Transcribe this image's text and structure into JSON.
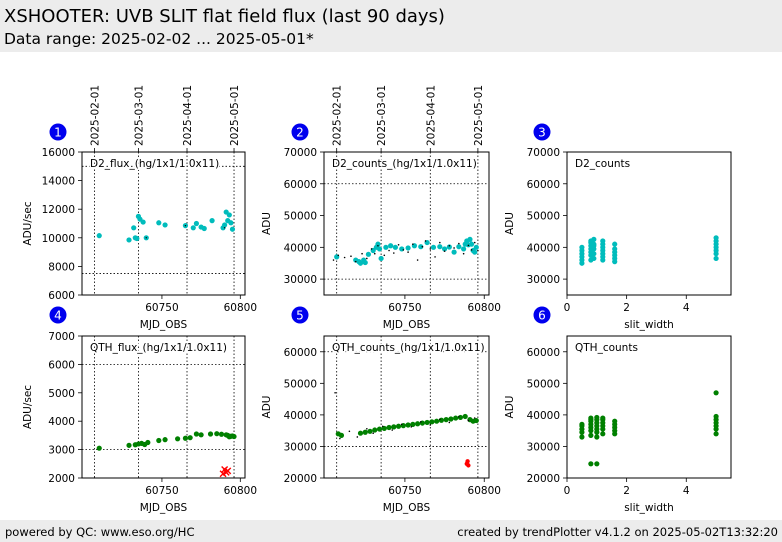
{
  "header": {
    "title": "XSHOOTER: UVB SLIT flat field flux (last 90 days)",
    "subtitle": "Data range: 2025-02-02 ... 2025-05-01*"
  },
  "footer": {
    "left": "powered by QC: www.eso.org/HC",
    "right": "created by trendPlotter v4.1.2 on 2025-05-02T13:32:20"
  },
  "colors": {
    "d2": "#00bcbc",
    "qth": "#008000",
    "outlier": "#ff0000",
    "raw": "#000000",
    "badge": "#0000ee"
  },
  "date_ticks": {
    "labels": [
      "2025-02-01",
      "2025-03-01",
      "2025-04-01",
      "2025-05-01"
    ],
    "mjd": [
      60707,
      60735,
      60766,
      60796
    ]
  },
  "chart_data": [
    {
      "id": 1,
      "badge": "1",
      "type": "scatter",
      "label": "D2_flux_(hg/1x1/1.0x11)",
      "xlabel": "MJD_OBS",
      "ylabel": "ADU/sec",
      "xlim": [
        60699,
        60803
      ],
      "ylim": [
        6000,
        16000
      ],
      "xticks": [
        60750,
        60800
      ],
      "yticks": [
        6000,
        8000,
        10000,
        12000,
        14000,
        16000
      ],
      "hlines": [
        7500,
        15000
      ],
      "series": [
        {
          "color": "d2",
          "size": 2.6,
          "x": [
            60710,
            60729,
            60732,
            60733,
            60734,
            60735,
            60736,
            60738,
            60740,
            60748,
            60752,
            60765,
            60770,
            60772,
            60775,
            60777,
            60782,
            60789,
            60790,
            60791,
            60792,
            60793,
            60794,
            60795
          ],
          "y": [
            10150,
            9850,
            10700,
            10000,
            9950,
            11500,
            11300,
            11100,
            10000,
            11050,
            10900,
            10850,
            10700,
            11000,
            10750,
            10650,
            11200,
            10700,
            10900,
            11800,
            11200,
            11600,
            11050,
            10600
          ]
        },
        {
          "color": "raw",
          "size": 0.7,
          "x": [
            60740,
            60765,
            60790
          ],
          "y": [
            10000,
            10850,
            10700
          ]
        }
      ]
    },
    {
      "id": 2,
      "badge": "2",
      "type": "scatter",
      "label": "D2_counts_(hg/1x1/1.0x11)",
      "xlabel": "MJD_OBS",
      "ylabel": "ADU",
      "xlim": [
        60699,
        60803
      ],
      "ylim": [
        25000,
        70000
      ],
      "xticks": [
        60750,
        60800
      ],
      "yticks": [
        30000,
        40000,
        50000,
        60000,
        70000
      ],
      "hlines": [
        30000,
        60000
      ],
      "series": [
        {
          "color": "d2",
          "size": 2.6,
          "x": [
            60707,
            60719,
            60721,
            60722,
            60724,
            60725,
            60727,
            60730,
            60732,
            60733,
            60734,
            60735,
            60738,
            60741,
            60744,
            60748,
            60752,
            60756,
            60760,
            60764,
            60768,
            60772,
            60775,
            60778,
            60781,
            60784,
            60787,
            60788,
            60789,
            60790,
            60791,
            60792,
            60793,
            60794,
            60795
          ],
          "y": [
            37000,
            36000,
            35500,
            35000,
            36000,
            35200,
            37800,
            39000,
            40000,
            41000,
            39500,
            36500,
            40000,
            40500,
            40000,
            39500,
            39800,
            40500,
            40200,
            41500,
            40000,
            40200,
            39500,
            40100,
            38500,
            40200,
            39500,
            41000,
            42000,
            40800,
            42500,
            41000,
            39000,
            38500,
            40000
          ]
        },
        {
          "color": "raw",
          "size": 0.8,
          "x": [
            60705,
            60708,
            60712,
            60716,
            60719,
            60723,
            60726,
            60729,
            60731,
            60733,
            60737,
            60740,
            60743,
            60746,
            60749,
            60752,
            60755,
            60758,
            60761,
            60763,
            60766,
            60769,
            60772,
            60775,
            60778,
            60781,
            60784,
            60787,
            60790,
            60792,
            60794,
            60796
          ],
          "y": [
            36000,
            37500,
            36800,
            37200,
            35500,
            38000,
            36500,
            39500,
            38000,
            40500,
            37500,
            39000,
            38200,
            40800,
            39200,
            38500,
            41000,
            36000,
            40200,
            42000,
            39500,
            37000,
            41500,
            38800,
            40500,
            39800,
            41200,
            38000,
            40600,
            39200,
            41500,
            39000
          ]
        }
      ]
    },
    {
      "id": 3,
      "badge": "3",
      "type": "scatter",
      "label": "D2_counts",
      "xlabel": "slit_width",
      "ylabel": "ADU",
      "xlim": [
        0,
        5.5
      ],
      "ylim": [
        25000,
        70000
      ],
      "xticks": [
        0,
        2,
        4
      ],
      "yticks": [
        30000,
        40000,
        50000,
        60000,
        70000
      ],
      "hlines": [],
      "series": [
        {
          "color": "d2",
          "size": 2.6,
          "x": [
            0.5,
            0.5,
            0.5,
            0.5,
            0.5,
            0.5,
            0.8,
            0.8,
            0.8,
            0.8,
            0.8,
            0.8,
            0.8,
            0.9,
            0.9,
            0.9,
            0.9,
            0.9,
            0.9,
            1.2,
            1.2,
            1.2,
            1.2,
            1.2,
            1.2,
            1.2,
            1.6,
            1.6,
            1.6,
            1.6,
            1.6,
            1.6,
            5.0,
            5.0,
            5.0,
            5.0,
            5.0,
            5.0,
            5.0
          ],
          "y": [
            35000,
            36000,
            37000,
            38000,
            39000,
            40000,
            36000,
            37500,
            38500,
            39500,
            40500,
            41500,
            42000,
            36500,
            38000,
            39500,
            40500,
            41000,
            42500,
            36000,
            37000,
            38000,
            39000,
            40000,
            41000,
            42000,
            35500,
            36500,
            37500,
            38500,
            39500,
            41000,
            36500,
            38000,
            39000,
            40000,
            41000,
            42000,
            43000
          ]
        }
      ]
    },
    {
      "id": 4,
      "badge": "4",
      "type": "scatter",
      "label": "QTH_flux_(hg/1x1/1.0x11)",
      "xlabel": "MJD_OBS",
      "ylabel": "ADU/sec",
      "xlim": [
        60699,
        60803
      ],
      "ylim": [
        2000,
        7000
      ],
      "xticks": [
        60750,
        60800
      ],
      "yticks": [
        2000,
        3000,
        4000,
        5000,
        6000,
        7000
      ],
      "hlines": [
        3000,
        6000
      ],
      "series": [
        {
          "color": "qth",
          "size": 2.6,
          "x": [
            60710,
            60729,
            60733,
            60735,
            60737,
            60739,
            60741,
            60748,
            60752,
            60760,
            60765,
            60768,
            60772,
            60775,
            60781,
            60785,
            60788,
            60791,
            60792,
            60793,
            60794,
            60795,
            60796
          ],
          "y": [
            3050,
            3150,
            3170,
            3200,
            3220,
            3180,
            3250,
            3320,
            3350,
            3380,
            3400,
            3420,
            3550,
            3520,
            3550,
            3560,
            3540,
            3520,
            3500,
            3450,
            3470,
            3480,
            3460
          ]
        },
        {
          "color": "outlier",
          "size": 2.6,
          "marker": "x",
          "x": [
            60789,
            60790,
            60791,
            60792
          ],
          "y": [
            2150,
            2300,
            2200,
            2250
          ]
        }
      ]
    },
    {
      "id": 5,
      "badge": "5",
      "type": "scatter",
      "label": "QTH_counts_(hg/1x1/1.0x11)",
      "xlabel": "MJD_OBS",
      "ylabel": "ADU",
      "xlim": [
        60699,
        60803
      ],
      "ylim": [
        20000,
        65000
      ],
      "xticks": [
        60750,
        60800
      ],
      "yticks": [
        20000,
        30000,
        40000,
        50000,
        60000
      ],
      "hlines": [
        30000,
        60000
      ],
      "series": [
        {
          "color": "qth",
          "size": 2.6,
          "x": [
            60708,
            60710,
            60722,
            60725,
            60728,
            60731,
            60734,
            60737,
            60740,
            60743,
            60746,
            60749,
            60752,
            60755,
            60758,
            60761,
            60764,
            60767,
            60770,
            60773,
            60776,
            60779,
            60782,
            60785,
            60788,
            60791,
            60793,
            60795
          ],
          "y": [
            34000,
            33500,
            34200,
            34500,
            34800,
            35200,
            35500,
            35700,
            36000,
            36200,
            36400,
            36600,
            36800,
            37000,
            37200,
            37400,
            37600,
            37800,
            38000,
            38300,
            38500,
            38700,
            39000,
            39200,
            39500,
            38500,
            38000,
            38200
          ]
        },
        {
          "color": "outlier",
          "size": 2.2,
          "x": [
            60789,
            60789.5,
            60790
          ],
          "y": [
            24500,
            25300,
            24000
          ]
        },
        {
          "color": "raw",
          "size": 0.8,
          "x": [
            60706,
            60709,
            60715,
            60720,
            60726,
            60730,
            60736,
            60742,
            60748,
            60754,
            60760,
            60766,
            60772,
            60778,
            60784,
            60790,
            60794
          ],
          "y": [
            47000,
            32500,
            34800,
            33000,
            35600,
            34200,
            36400,
            35200,
            37000,
            36200,
            37800,
            36800,
            38600,
            37600,
            39400,
            38200,
            39000
          ]
        }
      ]
    },
    {
      "id": 6,
      "badge": "6",
      "type": "scatter",
      "label": "QTH_counts",
      "xlabel": "slit_width",
      "ylabel": "ADU",
      "xlim": [
        0,
        5.5
      ],
      "ylim": [
        20000,
        65000
      ],
      "xticks": [
        0,
        2,
        4
      ],
      "yticks": [
        20000,
        30000,
        40000,
        50000,
        60000
      ],
      "hlines": [],
      "series": [
        {
          "color": "qth",
          "size": 2.6,
          "x": [
            0.5,
            0.5,
            0.5,
            0.5,
            0.5,
            0.8,
            0.8,
            0.8,
            0.8,
            0.8,
            0.8,
            0.8,
            0.8,
            1.0,
            1.0,
            1.0,
            1.0,
            1.0,
            1.0,
            1.0,
            1.0,
            1.2,
            1.2,
            1.2,
            1.2,
            1.2,
            1.2,
            1.6,
            1.6,
            1.6,
            1.6,
            1.6,
            5.0,
            5.0,
            5.0,
            5.0,
            5.0,
            5.0,
            5.0
          ],
          "y": [
            33000,
            34500,
            35500,
            36500,
            37000,
            24500,
            33500,
            35000,
            36000,
            37000,
            38000,
            38500,
            39000,
            24500,
            33000,
            34500,
            35500,
            36500,
            37500,
            38500,
            39200,
            34000,
            35500,
            36500,
            37500,
            38500,
            39000,
            34000,
            35000,
            36000,
            37000,
            38000,
            34000,
            35500,
            36500,
            37500,
            38500,
            39500,
            47000
          ]
        }
      ]
    }
  ]
}
